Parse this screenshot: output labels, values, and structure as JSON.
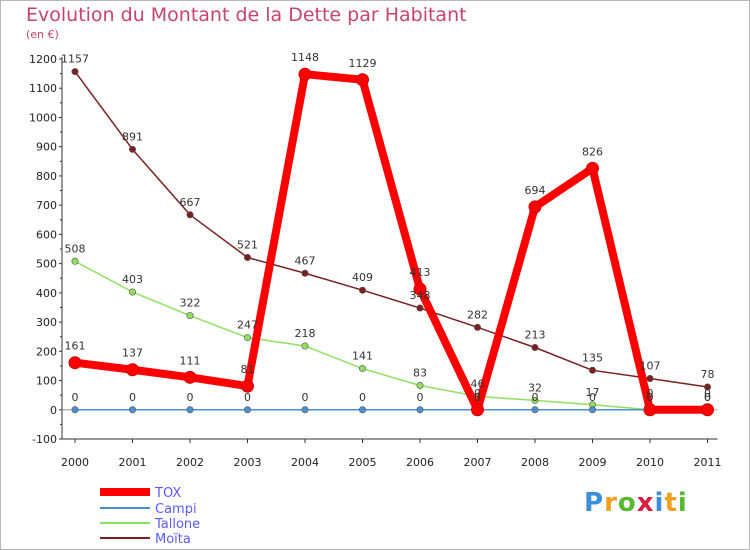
{
  "title": "Evolution du Montant de la Dette par Habitant",
  "subtitle": "(en €)",
  "logo": {
    "text": "Proxiti",
    "colors": [
      "#3a8fd8",
      "#f0a020",
      "#58b830",
      "#d82040",
      "#3a8fd8",
      "#f0a020",
      "#58b830"
    ]
  },
  "chart_data": {
    "type": "line",
    "x": [
      "2000",
      "2001",
      "2002",
      "2003",
      "2004",
      "2005",
      "2006",
      "2007",
      "2008",
      "2009",
      "2010",
      "2011"
    ],
    "ylim": [
      -100,
      1200
    ],
    "yticks": [
      -100,
      0,
      100,
      200,
      300,
      400,
      500,
      600,
      700,
      800,
      900,
      1000,
      1100,
      1200
    ],
    "grid": false,
    "legend_position": "bottom-left",
    "series": [
      {
        "name": "TOX",
        "color": "#ff0000",
        "values": [
          161,
          137,
          111,
          81,
          1148,
          1129,
          413,
          0,
          694,
          826,
          0,
          0
        ],
        "labels": [
          "161",
          "137",
          "111",
          "81",
          "1148",
          "1129",
          "413",
          "0",
          "694",
          "826",
          "0",
          "0"
        ]
      },
      {
        "name": "Campi",
        "color": "#4a90d0",
        "values": [
          0,
          0,
          0,
          0,
          0,
          0,
          0,
          0,
          0,
          0,
          0,
          0
        ],
        "labels": [
          "0",
          "0",
          "0",
          "0",
          "0",
          "0",
          "0",
          "0",
          "0",
          "0",
          "0",
          "0"
        ]
      },
      {
        "name": "Tallone",
        "color": "#90e060",
        "values": [
          508,
          403,
          322,
          247,
          218,
          141,
          83,
          46,
          32,
          17,
          0,
          0
        ],
        "labels": [
          "508",
          "403",
          "322",
          "247",
          "218",
          "141",
          "83",
          "46",
          "32",
          "17",
          "0",
          "0"
        ]
      },
      {
        "name": "Moïta",
        "color": "#7a2020",
        "values": [
          1157,
          891,
          667,
          521,
          467,
          409,
          348,
          282,
          213,
          135,
          107,
          78
        ],
        "labels": [
          "1157",
          "891",
          "667",
          "521",
          "467",
          "409",
          "348",
          "282",
          "213",
          "135",
          "107",
          "78"
        ]
      }
    ]
  }
}
